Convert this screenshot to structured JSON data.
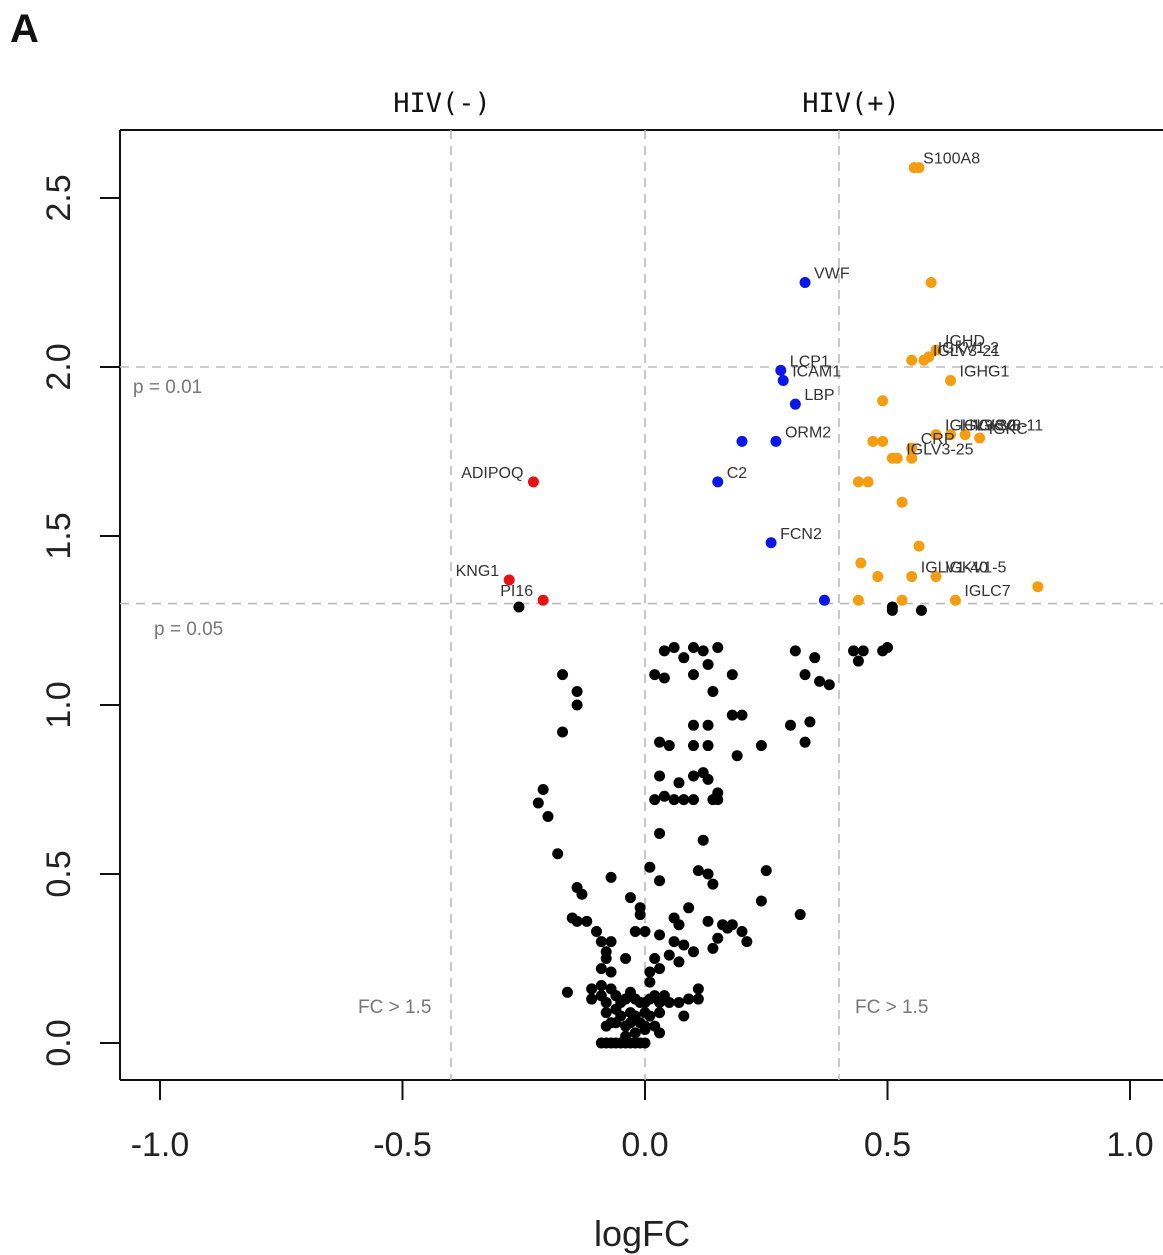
{
  "panel_letter": "A",
  "colors": {
    "black": "#000000",
    "blue": "#0a17e8",
    "red": "#e81212",
    "orange": "#f59d10"
  },
  "chart_data": {
    "type": "scatter",
    "title": "",
    "xlabel": "logFC",
    "ylabel": "",
    "xlim": [
      -1.08,
      1.08
    ],
    "ylim": [
      -0.1,
      2.7
    ],
    "xticks": [
      "-1.0",
      "-0.5",
      "0.0",
      "0.5",
      "1.0"
    ],
    "xtick_values": [
      -1.0,
      -0.5,
      0.0,
      0.5,
      1.0
    ],
    "yticks": [
      "0.0",
      "0.5",
      "1.0",
      "1.5",
      "2.0",
      "2.5"
    ],
    "ytick_values": [
      0.0,
      0.5,
      1.0,
      1.5,
      2.0,
      2.5
    ],
    "grid": false,
    "group_labels": {
      "left": "HIV(-)",
      "right": "HIV(+)"
    },
    "thresholds": {
      "vertical": [
        -0.4,
        0.0,
        0.4
      ],
      "horizontal": [
        {
          "y": 2.0,
          "label": "p = 0.01"
        },
        {
          "y": 1.3,
          "label": "p = 0.05"
        }
      ],
      "fc_labels": [
        "FC > 1.5",
        "FC > 1.5"
      ]
    },
    "series": [
      {
        "color": "blue",
        "points": [
          {
            "x": 0.33,
            "y": 2.25,
            "label": "VWF"
          },
          {
            "x": 0.28,
            "y": 1.99,
            "label": "LCP1"
          },
          {
            "x": 0.285,
            "y": 1.96,
            "label": "ICAM1"
          },
          {
            "x": 0.31,
            "y": 1.89,
            "label": "LBP"
          },
          {
            "x": 0.27,
            "y": 1.78,
            "label": "ORM2"
          },
          {
            "x": 0.2,
            "y": 1.78,
            "label": ""
          },
          {
            "x": 0.15,
            "y": 1.66,
            "label": "C2"
          },
          {
            "x": 0.26,
            "y": 1.48,
            "label": "FCN2"
          },
          {
            "x": 0.37,
            "y": 1.31,
            "label": ""
          }
        ]
      },
      {
        "color": "red",
        "points": [
          {
            "x": -0.23,
            "y": 1.66,
            "label": "ADIPOQ"
          },
          {
            "x": -0.28,
            "y": 1.37,
            "label": "KNG1"
          },
          {
            "x": -0.21,
            "y": 1.31,
            "label": "PI16"
          }
        ]
      },
      {
        "color": "orange",
        "points": [
          {
            "x": 0.555,
            "y": 2.59,
            "label": "S100A8"
          },
          {
            "x": 0.565,
            "y": 2.59,
            "label": ""
          },
          {
            "x": 0.59,
            "y": 2.25,
            "label": ""
          },
          {
            "x": 0.6,
            "y": 2.05,
            "label": "IGHD"
          },
          {
            "x": 0.585,
            "y": 2.03,
            "label": "IGKV1-2"
          },
          {
            "x": 0.575,
            "y": 2.02,
            "label": "IGLV3-21"
          },
          {
            "x": 0.55,
            "y": 2.02,
            "label": ""
          },
          {
            "x": 0.63,
            "y": 1.96,
            "label": "IGHG1"
          },
          {
            "x": 0.49,
            "y": 1.9,
            "label": ""
          },
          {
            "x": 0.6,
            "y": 1.8,
            "label": "IGHV3-30"
          },
          {
            "x": 0.63,
            "y": 1.8,
            "label": "IGLV3-1"
          },
          {
            "x": 0.66,
            "y": 1.8,
            "label": "IGKV3-11"
          },
          {
            "x": 0.69,
            "y": 1.79,
            "label": "IGKC"
          },
          {
            "x": 0.47,
            "y": 1.78,
            "label": ""
          },
          {
            "x": 0.49,
            "y": 1.78,
            "label": ""
          },
          {
            "x": 0.55,
            "y": 1.76,
            "label": "CRP"
          },
          {
            "x": 0.51,
            "y": 1.73,
            "label": ""
          },
          {
            "x": 0.52,
            "y": 1.73,
            "label": "IGLV3-25"
          },
          {
            "x": 0.55,
            "y": 1.73,
            "label": ""
          },
          {
            "x": 0.44,
            "y": 1.66,
            "label": ""
          },
          {
            "x": 0.46,
            "y": 1.66,
            "label": ""
          },
          {
            "x": 0.53,
            "y": 1.6,
            "label": ""
          },
          {
            "x": 0.565,
            "y": 1.47,
            "label": ""
          },
          {
            "x": 0.445,
            "y": 1.42,
            "label": ""
          },
          {
            "x": 0.48,
            "y": 1.38,
            "label": ""
          },
          {
            "x": 0.55,
            "y": 1.38,
            "label": "IGLV1-40"
          },
          {
            "x": 0.6,
            "y": 1.38,
            "label": "IGKV1-5"
          },
          {
            "x": 0.81,
            "y": 1.35,
            "label": ""
          },
          {
            "x": 0.44,
            "y": 1.31,
            "label": ""
          },
          {
            "x": 0.53,
            "y": 1.31,
            "label": ""
          },
          {
            "x": 0.64,
            "y": 1.31,
            "label": "IGLC7"
          }
        ]
      },
      {
        "color": "black",
        "points": [
          [
            -0.26,
            1.29
          ],
          [
            0.51,
            1.29
          ],
          [
            0.51,
            1.28
          ],
          [
            0.57,
            1.28
          ],
          [
            0.49,
            1.16
          ],
          [
            0.5,
            1.17
          ],
          [
            0.45,
            1.16
          ],
          [
            0.43,
            1.16
          ],
          [
            0.44,
            1.13
          ],
          [
            0.31,
            1.16
          ],
          [
            0.33,
            1.09
          ],
          [
            0.36,
            1.07
          ],
          [
            0.38,
            1.06
          ],
          [
            0.35,
            1.14
          ],
          [
            -0.17,
            1.09
          ],
          [
            -0.14,
            1.04
          ],
          [
            -0.14,
            1.0
          ],
          [
            -0.17,
            0.92
          ],
          [
            0.04,
            1.16
          ],
          [
            0.06,
            1.17
          ],
          [
            0.1,
            1.17
          ],
          [
            0.12,
            1.16
          ],
          [
            0.15,
            1.17
          ],
          [
            0.08,
            1.14
          ],
          [
            0.13,
            1.12
          ],
          [
            0.02,
            1.09
          ],
          [
            0.04,
            1.08
          ],
          [
            0.1,
            1.09
          ],
          [
            0.18,
            1.09
          ],
          [
            0.14,
            1.04
          ],
          [
            0.18,
            0.97
          ],
          [
            0.2,
            0.97
          ],
          [
            0.1,
            0.94
          ],
          [
            0.13,
            0.94
          ],
          [
            0.3,
            0.94
          ],
          [
            0.34,
            0.95
          ],
          [
            0.33,
            0.89
          ],
          [
            0.24,
            0.88
          ],
          [
            0.19,
            0.85
          ],
          [
            0.03,
            0.89
          ],
          [
            0.05,
            0.88
          ],
          [
            0.1,
            0.88
          ],
          [
            0.13,
            0.88
          ],
          [
            0.03,
            0.79
          ],
          [
            0.1,
            0.79
          ],
          [
            0.12,
            0.8
          ],
          [
            0.13,
            0.78
          ],
          [
            0.07,
            0.77
          ],
          [
            0.15,
            0.74
          ],
          [
            -0.21,
            0.75
          ],
          [
            -0.22,
            0.71
          ],
          [
            -0.2,
            0.67
          ],
          [
            0.02,
            0.72
          ],
          [
            0.04,
            0.73
          ],
          [
            0.06,
            0.72
          ],
          [
            0.08,
            0.72
          ],
          [
            0.1,
            0.72
          ],
          [
            0.14,
            0.72
          ],
          [
            0.15,
            0.72
          ],
          [
            0.03,
            0.62
          ],
          [
            0.12,
            0.6
          ],
          [
            -0.18,
            0.56
          ],
          [
            0.01,
            0.52
          ],
          [
            0.03,
            0.48
          ],
          [
            0.11,
            0.51
          ],
          [
            0.13,
            0.5
          ],
          [
            0.14,
            0.47
          ],
          [
            0.25,
            0.51
          ],
          [
            -0.07,
            0.49
          ],
          [
            -0.14,
            0.46
          ],
          [
            -0.13,
            0.44
          ],
          [
            -0.03,
            0.43
          ],
          [
            0.24,
            0.42
          ],
          [
            0.09,
            0.4
          ],
          [
            -0.01,
            0.4
          ],
          [
            -0.01,
            0.38
          ],
          [
            0.06,
            0.37
          ],
          [
            0.07,
            0.35
          ],
          [
            -0.15,
            0.37
          ],
          [
            -0.14,
            0.36
          ],
          [
            -0.12,
            0.36
          ],
          [
            -0.1,
            0.33
          ],
          [
            -0.09,
            0.3
          ],
          [
            -0.08,
            0.27
          ],
          [
            -0.07,
            0.3
          ],
          [
            -0.02,
            0.33
          ],
          [
            0.0,
            0.33
          ],
          [
            0.03,
            0.32
          ],
          [
            0.06,
            0.3
          ],
          [
            0.08,
            0.29
          ],
          [
            0.13,
            0.36
          ],
          [
            0.16,
            0.35
          ],
          [
            0.17,
            0.34
          ],
          [
            0.15,
            0.31
          ],
          [
            0.18,
            0.35
          ],
          [
            0.2,
            0.33
          ],
          [
            0.21,
            0.3
          ],
          [
            0.14,
            0.28
          ],
          [
            0.1,
            0.27
          ],
          [
            0.32,
            0.38
          ],
          [
            -0.08,
            0.25
          ],
          [
            -0.09,
            0.22
          ],
          [
            -0.07,
            0.21
          ],
          [
            -0.04,
            0.25
          ],
          [
            0.02,
            0.25
          ],
          [
            0.05,
            0.26
          ],
          [
            0.01,
            0.21
          ],
          [
            0.03,
            0.22
          ],
          [
            0.07,
            0.24
          ],
          [
            0.01,
            0.18
          ],
          [
            -0.09,
            0.17
          ],
          [
            -0.11,
            0.16
          ],
          [
            -0.16,
            0.15
          ],
          [
            -0.11,
            0.13
          ],
          [
            -0.09,
            0.14
          ],
          [
            -0.08,
            0.12
          ],
          [
            -0.07,
            0.16
          ],
          [
            -0.06,
            0.14
          ],
          [
            -0.05,
            0.12
          ],
          [
            -0.04,
            0.13
          ],
          [
            -0.03,
            0.15
          ],
          [
            -0.02,
            0.13
          ],
          [
            -0.01,
            0.12
          ],
          [
            0.0,
            0.12
          ],
          [
            0.01,
            0.13
          ],
          [
            0.02,
            0.14
          ],
          [
            0.03,
            0.12
          ],
          [
            0.04,
            0.14
          ],
          [
            0.05,
            0.12
          ],
          [
            0.07,
            0.12
          ],
          [
            0.09,
            0.13
          ],
          [
            0.11,
            0.16
          ],
          [
            0.11,
            0.13
          ],
          [
            -0.08,
            0.09
          ],
          [
            -0.06,
            0.1
          ],
          [
            -0.05,
            0.08
          ],
          [
            -0.03,
            0.09
          ],
          [
            -0.02,
            0.08
          ],
          [
            0.0,
            0.09
          ],
          [
            0.01,
            0.08
          ],
          [
            0.03,
            0.09
          ],
          [
            0.08,
            0.08
          ],
          [
            -0.08,
            0.05
          ],
          [
            -0.07,
            0.06
          ],
          [
            -0.06,
            0.06
          ],
          [
            -0.04,
            0.05
          ],
          [
            -0.03,
            0.06
          ],
          [
            -0.01,
            0.06
          ],
          [
            0.0,
            0.05
          ],
          [
            0.02,
            0.05
          ],
          [
            -0.04,
            0.02
          ],
          [
            -0.02,
            0.03
          ],
          [
            0.0,
            0.04
          ],
          [
            0.03,
            0.03
          ],
          [
            -0.09,
            0.0
          ],
          [
            -0.08,
            0.0
          ],
          [
            -0.07,
            0.0
          ],
          [
            -0.06,
            0.0
          ],
          [
            -0.05,
            0.0
          ],
          [
            -0.04,
            0.0
          ],
          [
            -0.03,
            0.0
          ],
          [
            -0.02,
            0.0
          ],
          [
            -0.01,
            0.0
          ],
          [
            0.0,
            0.0
          ]
        ]
      }
    ]
  }
}
